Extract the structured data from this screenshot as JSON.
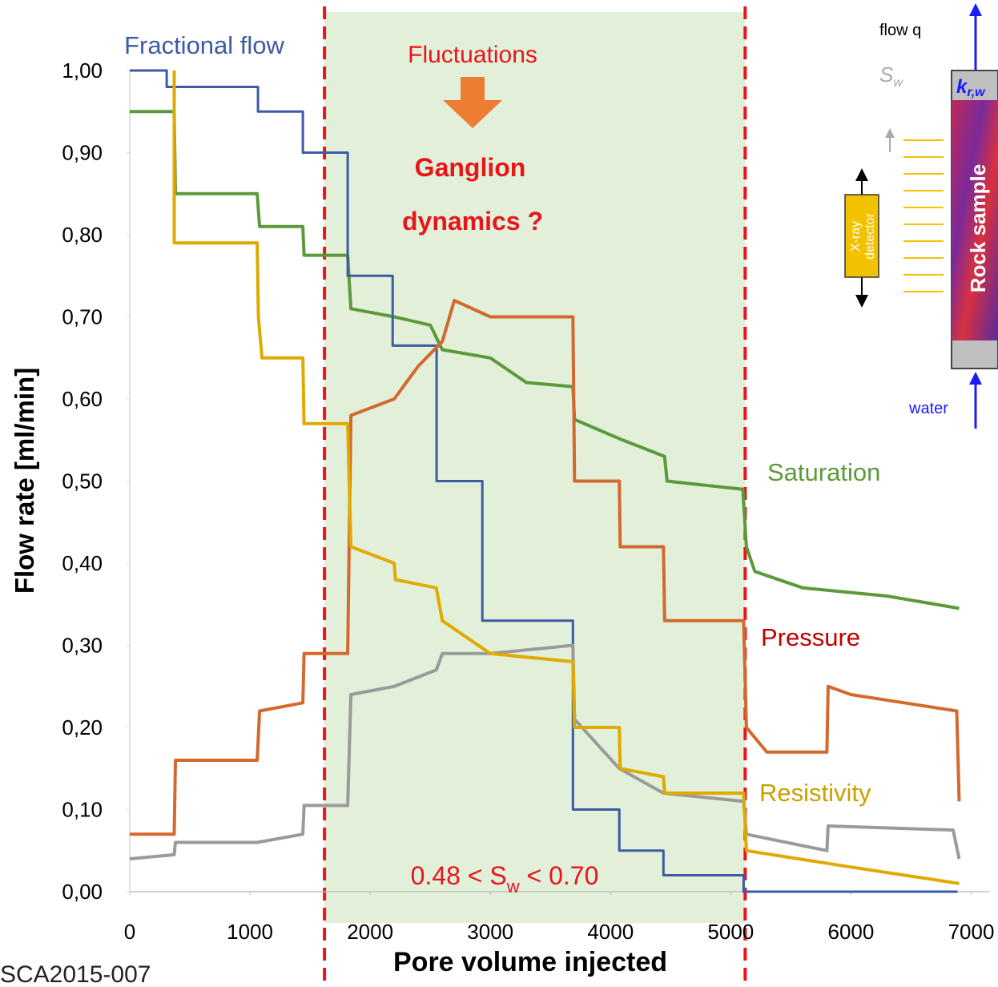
{
  "chart_data": {
    "type": "line",
    "x_label": "Pore volume injected",
    "y_label": "Flow rate [ml/min]",
    "xlim": [
      0,
      7150
    ],
    "ylim": [
      0,
      1
    ],
    "xticks": [
      0,
      1000,
      2000,
      3000,
      4000,
      5000,
      6000,
      7000
    ],
    "yticks": [
      {
        "value": 0,
        "label": "0,00"
      },
      {
        "value": 0.1,
        "label": "0,10"
      },
      {
        "value": 0.2,
        "label": "0,20"
      },
      {
        "value": 0.3,
        "label": "0,30"
      },
      {
        "value": 0.4,
        "label": "0,40"
      },
      {
        "value": 0.5,
        "label": "0,50"
      },
      {
        "value": 0.6,
        "label": "0,60"
      },
      {
        "value": 0.7,
        "label": "0,70"
      },
      {
        "value": 0.8,
        "label": "0,80"
      },
      {
        "value": 0.9,
        "label": "0,90"
      },
      {
        "value": 1,
        "label": "1,00"
      }
    ],
    "shaded_xrange": [
      1620,
      5120
    ],
    "shaded_color": "#e2efd9",
    "annotations": {
      "fluctuations": "Fluctuations",
      "ganglion": [
        "Ganglion",
        "dynamics ?"
      ],
      "sw_range": [
        "0.48 < S",
        "w",
        " < 0.70"
      ],
      "reference": "SCA2015-007"
    },
    "series": [
      {
        "name": "Fractional flow",
        "color": "#3b5ba5",
        "x": [
          0,
          307,
          307,
          1067,
          1067,
          1440,
          1440,
          1813,
          1813,
          2187,
          2187,
          2553,
          2553,
          2933,
          2933,
          3687,
          3687,
          4073,
          4073,
          4440,
          4440,
          5107,
          5107,
          6887
        ],
        "values": [
          1,
          1,
          0.98,
          0.98,
          0.95,
          0.95,
          0.9,
          0.9,
          0.75,
          0.75,
          0.665,
          0.665,
          0.5,
          0.5,
          0.33,
          0.33,
          0.1,
          0.1,
          0.05,
          0.05,
          0.02,
          0.02,
          0,
          0
        ]
      },
      {
        "name": "Saturation",
        "color": "#5b9a3a",
        "x": [
          0,
          370,
          380,
          1060,
          1080,
          1440,
          1450,
          1813,
          1840,
          2200,
          2500,
          2600,
          3000,
          3300,
          3687,
          3700,
          4100,
          4450,
          4470,
          5100,
          5130,
          5200,
          5600,
          6300,
          6900
        ],
        "values": [
          0.95,
          0.95,
          0.85,
          0.85,
          0.81,
          0.81,
          0.775,
          0.775,
          0.71,
          0.7,
          0.69,
          0.66,
          0.65,
          0.62,
          0.615,
          0.575,
          0.55,
          0.53,
          0.5,
          0.49,
          0.42,
          0.39,
          0.37,
          0.36,
          0.345
        ]
      },
      {
        "name": "Pressure",
        "color": "#d3692e",
        "x": [
          0,
          370,
          380,
          1060,
          1080,
          1440,
          1450,
          1813,
          1840,
          2200,
          2400,
          2600,
          2700,
          3000,
          3687,
          3700,
          4073,
          4080,
          4440,
          4450,
          5107,
          5130,
          5300,
          5800,
          5810,
          6000,
          6880,
          6900
        ],
        "values": [
          0.07,
          0.07,
          0.16,
          0.16,
          0.22,
          0.23,
          0.29,
          0.29,
          0.58,
          0.6,
          0.64,
          0.67,
          0.72,
          0.7,
          0.7,
          0.5,
          0.5,
          0.42,
          0.42,
          0.33,
          0.33,
          0.2,
          0.17,
          0.17,
          0.25,
          0.24,
          0.22,
          0.11
        ]
      },
      {
        "name": "Resistivity",
        "color": "#e0a900",
        "x": [
          370,
          370,
          380,
          1060,
          1070,
          1100,
          1440,
          1450,
          1813,
          1840,
          2200,
          2210,
          2550,
          2600,
          3000,
          3687,
          3700,
          4073,
          4080,
          4440,
          4450,
          5107,
          5130,
          6000,
          6900
        ],
        "values": [
          1,
          0.79,
          0.79,
          0.79,
          0.7,
          0.65,
          0.65,
          0.57,
          0.57,
          0.42,
          0.4,
          0.38,
          0.37,
          0.33,
          0.29,
          0.28,
          0.2,
          0.2,
          0.15,
          0.14,
          0.12,
          0.12,
          0.05,
          0.03,
          0.01
        ]
      },
      {
        "color": "#9a9a9a",
        "x": [
          0,
          370,
          380,
          1060,
          1440,
          1450,
          1813,
          1840,
          2200,
          2550,
          2600,
          3000,
          3687,
          3700,
          4073,
          4440,
          5107,
          5130,
          5800,
          5810,
          6850,
          6900
        ],
        "values": [
          0.04,
          0.045,
          0.06,
          0.06,
          0.07,
          0.105,
          0.105,
          0.24,
          0.25,
          0.27,
          0.29,
          0.29,
          0.3,
          0.21,
          0.15,
          0.12,
          0.11,
          0.07,
          0.05,
          0.08,
          0.075,
          0.04
        ]
      }
    ]
  },
  "inset": {
    "flow_q": "flow q",
    "sw": [
      "S",
      "w"
    ],
    "krw": [
      "k",
      "r,w"
    ],
    "detector": [
      "X-ray",
      "detector"
    ],
    "rock": "Rock sample",
    "water": "water"
  }
}
